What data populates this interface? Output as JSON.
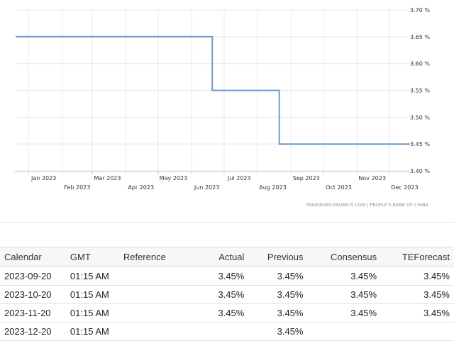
{
  "chart_data": {
    "type": "line",
    "step": true,
    "y_unit": "%",
    "ylim": [
      3.4,
      3.7
    ],
    "y_ticks": [
      "3.70 %",
      "3.65 %",
      "3.60 %",
      "3.55 %",
      "3.50 %",
      "3.45 %",
      "3.40 %"
    ],
    "x_ticks_upper": [
      "Jan 2023",
      "Mar 2023",
      "May 2023",
      "Jul 2023",
      "Sep 2023",
      "Nov 2023"
    ],
    "x_ticks_lower": [
      "Feb 2023",
      "Apr 2023",
      "Jun 2023",
      "Aug 2023",
      "Oct 2023",
      "Dec 2023"
    ],
    "series": [
      {
        "points": [
          {
            "x": "2022-12-20",
            "y": 3.65
          },
          {
            "x": "2023-06-20",
            "y": 3.65
          },
          {
            "x": "2023-06-20",
            "y": 3.55
          },
          {
            "x": "2023-08-21",
            "y": 3.55
          },
          {
            "x": "2023-08-21",
            "y": 3.45
          },
          {
            "x": "2023-12-20",
            "y": 3.45
          }
        ]
      }
    ],
    "grid": true,
    "source": "TRADINGECONOMICS.COM  |  PEOPLE'S BANK OF CHINA",
    "colors": {
      "line": "#6d9ccc",
      "grid": "#e9e9e9",
      "axis": "#cccccc"
    }
  },
  "calendar": {
    "headers": {
      "calendar": "Calendar",
      "gmt": "GMT",
      "reference": "Reference",
      "actual": "Actual",
      "previous": "Previous",
      "consensus": "Consensus",
      "teforecast": "TEForecast"
    },
    "rows": [
      {
        "calendar": "2023-09-20",
        "gmt": "01:15 AM",
        "reference": "",
        "actual": "3.45%",
        "previous": "3.45%",
        "consensus": "3.45%",
        "teforecast": "3.45%"
      },
      {
        "calendar": "2023-10-20",
        "gmt": "01:15 AM",
        "reference": "",
        "actual": "3.45%",
        "previous": "3.45%",
        "consensus": "3.45%",
        "teforecast": "3.45%"
      },
      {
        "calendar": "2023-11-20",
        "gmt": "01:15 AM",
        "reference": "",
        "actual": "3.45%",
        "previous": "3.45%",
        "consensus": "3.45%",
        "teforecast": "3.45%"
      },
      {
        "calendar": "2023-12-20",
        "gmt": "01:15 AM",
        "reference": "",
        "actual": "",
        "previous": "3.45%",
        "consensus": "",
        "teforecast": ""
      }
    ]
  }
}
